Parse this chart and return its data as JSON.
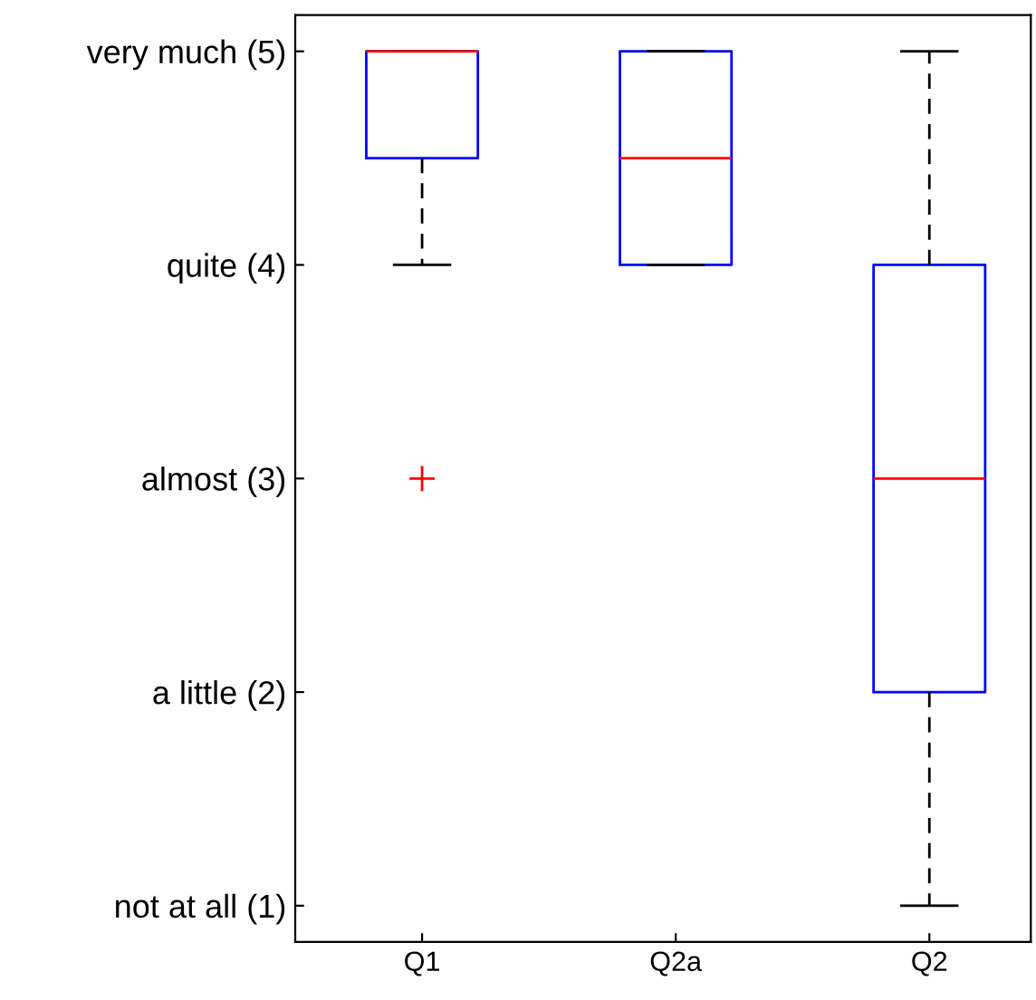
{
  "chart_data": {
    "type": "box",
    "categories": [
      "Q1",
      "Q2a",
      "Q2"
    ],
    "boxes": [
      {
        "low": 4,
        "q1": 4.5,
        "median": 5,
        "q3": 5,
        "high": 5,
        "outliers": [
          3
        ]
      },
      {
        "low": 4,
        "q1": 4,
        "median": 4.5,
        "q3": 5,
        "high": 5
      },
      {
        "low": 1,
        "q1": 2,
        "median": 3,
        "q3": 4,
        "high": 5
      }
    ],
    "color": "#0000ff",
    "ylim": [
      0.83,
      5.17
    ],
    "yticks": [
      {
        "value": 1,
        "label": "not at all (1)"
      },
      {
        "value": 2,
        "label": "a little (2)"
      },
      {
        "value": 3,
        "label": "almost (3)"
      },
      {
        "value": 4,
        "label": "quite (4)"
      },
      {
        "value": 5,
        "label": "very much (5)"
      }
    ],
    "grid": false,
    "legend": false
  }
}
